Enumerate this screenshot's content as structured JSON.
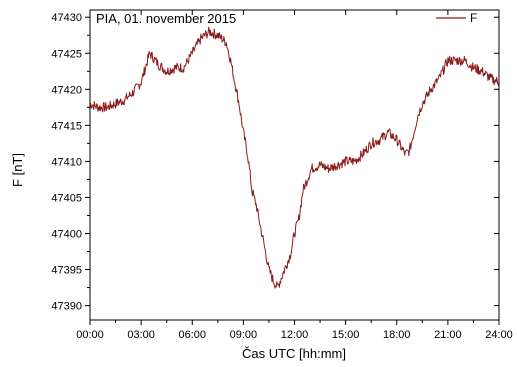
{
  "chart_data": {
    "type": "line",
    "annotation": "PIA, 01. november  2015",
    "xlabel": "Čas UTC [hh:mm]",
    "ylabel": "F [nT]",
    "x_unit": "hours UTC",
    "xlim": [
      0,
      24
    ],
    "ylim": [
      47388,
      47431
    ],
    "x_ticks": [
      0,
      3,
      6,
      9,
      12,
      15,
      18,
      21,
      24
    ],
    "x_tick_labels": [
      "00:00",
      "03:00",
      "06:00",
      "09:00",
      "12:00",
      "15:00",
      "18:00",
      "21:00",
      "24:00"
    ],
    "y_ticks": [
      47390,
      47395,
      47400,
      47405,
      47410,
      47415,
      47420,
      47425,
      47430
    ],
    "y_tick_labels": [
      "47390",
      "47395",
      "47400",
      "47405",
      "47410",
      "47415",
      "47420",
      "47425",
      "47430"
    ],
    "grid": false,
    "legend_position": "top-right",
    "series": [
      {
        "name": "F",
        "color": "#8b1a1a",
        "x": [
          0.0,
          0.5,
          1.0,
          1.5,
          2.0,
          2.5,
          3.0,
          3.25,
          3.5,
          4.0,
          4.5,
          5.0,
          5.5,
          6.0,
          6.5,
          7.0,
          7.5,
          8.0,
          8.25,
          8.5,
          8.75,
          9.0,
          9.25,
          9.5,
          9.75,
          10.0,
          10.25,
          10.5,
          10.75,
          11.0,
          11.25,
          11.5,
          11.75,
          12.0,
          12.25,
          12.5,
          12.75,
          13.0,
          13.5,
          14.0,
          14.5,
          15.0,
          15.5,
          16.0,
          16.5,
          17.0,
          17.5,
          18.0,
          18.5,
          18.75,
          19.0,
          19.25,
          19.5,
          20.0,
          20.5,
          21.0,
          21.5,
          22.0,
          22.5,
          23.0,
          23.5,
          24.0
        ],
        "values": [
          47418,
          47417.5,
          47417.5,
          47418,
          47418.5,
          47419.5,
          47421,
          47423,
          47425,
          47423.5,
          47422.5,
          47423,
          47423,
          47425,
          47427,
          47428,
          47427.5,
          47426.5,
          47424,
          47421,
          47418,
          47414,
          47411,
          47406,
          47404,
          47401,
          47398,
          47395,
          47393.5,
          47392.5,
          47394,
          47395.5,
          47397,
          47400,
          47402,
          47406,
          47407.5,
          47409,
          47409.5,
          47409,
          47409.5,
          47410,
          47410,
          47411,
          47412.5,
          47413,
          47414,
          47413,
          47411,
          47411.5,
          47414,
          47416.5,
          47418,
          47420,
          47421.5,
          47424,
          47424,
          47424,
          47423,
          47422.5,
          47421.5,
          47421
        ]
      }
    ]
  }
}
